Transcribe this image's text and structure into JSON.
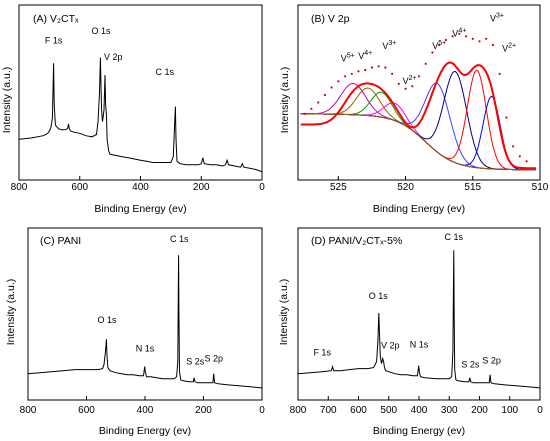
{
  "chart_data": [
    {
      "type": "line",
      "title": "(A) V₂CTₓ",
      "xlabel": "Binding Energy (ev)",
      "ylabel": "Intensity (a.u.)",
      "xlim": [
        800,
        0
      ],
      "x_reversed": true,
      "xticks": [
        "800",
        "600",
        "400",
        "200",
        "0"
      ],
      "y_ticks_shown": false,
      "series": [
        {
          "x": [
            800,
            760,
            720,
            705,
            700,
            695,
            690,
            686,
            684,
            680,
            670,
            660,
            650,
            640,
            637,
            634,
            630,
            620,
            600,
            580,
            560,
            545,
            540,
            535,
            532,
            530,
            528,
            525,
            520,
            517,
            515,
            512,
            510,
            505,
            500,
            480,
            460,
            440,
            420,
            400,
            380,
            360,
            340,
            320,
            300,
            292,
            288,
            285,
            283,
            280,
            270,
            250,
            230,
            210,
            200,
            195,
            190,
            170,
            150,
            130,
            120,
            115,
            110,
            90,
            70,
            65,
            60,
            40,
            20,
            0
          ],
          "y": [
            0.3,
            0.31,
            0.33,
            0.35,
            0.37,
            0.4,
            0.48,
            0.95,
            0.6,
            0.42,
            0.39,
            0.38,
            0.38,
            0.39,
            0.43,
            0.39,
            0.37,
            0.36,
            0.35,
            0.33,
            0.32,
            0.34,
            0.45,
            0.7,
            1.0,
            0.75,
            0.55,
            0.45,
            0.55,
            0.85,
            0.6,
            0.5,
            0.3,
            0.2,
            0.17,
            0.16,
            0.15,
            0.14,
            0.13,
            0.12,
            0.11,
            0.1,
            0.1,
            0.1,
            0.1,
            0.15,
            0.4,
            0.58,
            0.3,
            0.11,
            0.09,
            0.08,
            0.08,
            0.08,
            0.09,
            0.14,
            0.09,
            0.08,
            0.08,
            0.07,
            0.08,
            0.12,
            0.08,
            0.07,
            0.06,
            0.09,
            0.06,
            0.05,
            0.04,
            0.02
          ]
        }
      ],
      "annotations": [
        {
          "text": "F 1s",
          "x": 686,
          "y": 1.12
        },
        {
          "text": "O 1s",
          "x": 530,
          "y": 1.2
        },
        {
          "text": "V 2p",
          "x": 490,
          "y": 0.98
        },
        {
          "text": "C 1s",
          "x": 320,
          "y": 0.85
        }
      ]
    },
    {
      "type": "line",
      "title": "(B) V 2p",
      "xlabel": "Binding Energy (ev)",
      "ylabel": "Intensity (a.u.)",
      "xlim": [
        528,
        510
      ],
      "x_reversed": true,
      "xticks": [
        "525",
        "520",
        "515",
        "510"
      ],
      "y_ticks_shown": false,
      "series": [
        {
          "name": "measured",
          "x": [
            527.5,
            527,
            526.5,
            526,
            525.5,
            525,
            524.5,
            524,
            523.5,
            523,
            522.5,
            522,
            521.5,
            521,
            520.5,
            520,
            519.5,
            519,
            518.5,
            518,
            517.5,
            517,
            516.5,
            516,
            515.5,
            515,
            514.5,
            514,
            513.5,
            513,
            512.5,
            512,
            511.5,
            511
          ],
          "y": [
            0.48,
            0.52,
            0.57,
            0.63,
            0.69,
            0.74,
            0.78,
            0.8,
            0.82,
            0.83,
            0.85,
            0.86,
            0.85,
            0.8,
            0.72,
            0.68,
            0.7,
            0.78,
            0.88,
            0.97,
            1.03,
            1.07,
            1.1,
            1.12,
            1.1,
            1.08,
            1.06,
            1.08,
            1.03,
            0.8,
            0.45,
            0.22,
            0.14,
            0.1
          ]
        },
        {
          "name": "V⁵⁺ (2p1/2)",
          "center": 523.9,
          "height": 0.25,
          "width": 1.3,
          "color": "#c000c0"
        },
        {
          "name": "V⁴⁺ (2p1/2)",
          "center": 522.8,
          "height": 0.22,
          "width": 1.2,
          "color": "#a06000"
        },
        {
          "name": "V³⁺ (2p1/2)",
          "center": 521.8,
          "height": 0.2,
          "width": 1.1,
          "color": "#00a000"
        },
        {
          "name": "V²⁺ (2p1/2)",
          "center": 520.8,
          "height": 0.14,
          "width": 1.1,
          "color": "#ff00ff"
        },
        {
          "name": "V⁵⁺ (2p3/2)",
          "center": 517.6,
          "height": 0.55,
          "width": 1.3,
          "color": "#4040ff"
        },
        {
          "name": "V⁴⁺ (2p3/2)",
          "center": 516.3,
          "height": 0.73,
          "width": 1.2,
          "color": "#000080"
        },
        {
          "name": "V³⁺ (2p3/2)",
          "center": 514.7,
          "height": 0.78,
          "width": 1.0,
          "color": "#ff0000"
        },
        {
          "name": "V²⁺ (2p3/2)",
          "center": 513.6,
          "height": 0.58,
          "width": 0.9,
          "color": "#0000ff"
        },
        {
          "name": "background",
          "color": "#a06000"
        }
      ],
      "annotations": [
        {
          "text": "V",
          "sup": "5+",
          "x": 524.3,
          "y": 0.9
        },
        {
          "text": "V",
          "sup": "4+",
          "x": 523.0,
          "y": 0.92
        },
        {
          "text": "V",
          "sup": "3+",
          "x": 521.2,
          "y": 1.0
        },
        {
          "text": "V",
          "sup": "2+",
          "x": 519.7,
          "y": 0.72
        },
        {
          "text": "V",
          "sup": "5+",
          "x": 517.5,
          "y": 1.0
        },
        {
          "text": "V",
          "sup": "4+",
          "x": 516.0,
          "y": 1.1
        },
        {
          "text": "V",
          "sup": "3+",
          "x": 513.2,
          "y": 1.22
        },
        {
          "text": "V",
          "sup": "2+",
          "x": 512.3,
          "y": 0.98
        }
      ]
    },
    {
      "type": "line",
      "title": "(C) PANI",
      "xlabel": "Binding Energy (ev)",
      "ylabel": "Intensity (a.u.)",
      "xlim": [
        800,
        0
      ],
      "x_reversed": true,
      "xticks": [
        "800",
        "600",
        "400",
        "200",
        "0"
      ],
      "y_ticks_shown": false,
      "series": [
        {
          "x": [
            800,
            760,
            720,
            680,
            640,
            600,
            580,
            560,
            545,
            540,
            535,
            532,
            530,
            527,
            520,
            500,
            480,
            460,
            440,
            420,
            405,
            401,
            399,
            395,
            380,
            360,
            340,
            320,
            300,
            292,
            288,
            286,
            285,
            284,
            282,
            278,
            270,
            250,
            235,
            232,
            229,
            220,
            200,
            180,
            168,
            165,
            162,
            150,
            120,
            80,
            40,
            0
          ],
          "y": [
            0.18,
            0.19,
            0.2,
            0.21,
            0.22,
            0.22,
            0.22,
            0.22,
            0.23,
            0.27,
            0.4,
            0.52,
            0.36,
            0.24,
            0.21,
            0.19,
            0.18,
            0.17,
            0.17,
            0.16,
            0.16,
            0.25,
            0.2,
            0.15,
            0.15,
            0.14,
            0.13,
            0.13,
            0.13,
            0.15,
            0.3,
            1.0,
            1.35,
            0.8,
            0.2,
            0.12,
            0.11,
            0.1,
            0.1,
            0.14,
            0.1,
            0.09,
            0.09,
            0.09,
            0.09,
            0.18,
            0.09,
            0.08,
            0.07,
            0.06,
            0.05,
            0.04
          ]
        }
      ],
      "annotations": [
        {
          "text": "O 1s",
          "x": 530,
          "y": 0.68
        },
        {
          "text": "N 1s",
          "x": 400,
          "y": 0.4
        },
        {
          "text": "C 1s",
          "x": 283,
          "y": 1.48
        },
        {
          "text": "S 2s",
          "x": 228,
          "y": 0.27
        },
        {
          "text": "S 2p",
          "x": 165,
          "y": 0.3
        }
      ]
    },
    {
      "type": "line",
      "title": "(D) PANI/V₂CTₓ-5%",
      "xlabel": "Binding Energy (ev)",
      "ylabel": "Intensity (a.u.)",
      "xlim": [
        800,
        0
      ],
      "x_reversed": true,
      "xticks": [
        "800",
        "700",
        "600",
        "500",
        "400",
        "300",
        "200",
        "100",
        "0"
      ],
      "y_ticks_shown": false,
      "series": [
        {
          "x": [
            800,
            760,
            720,
            690,
            686,
            682,
            660,
            630,
            600,
            570,
            550,
            540,
            536,
            533,
            531,
            528,
            524,
            520,
            517,
            514,
            510,
            500,
            480,
            460,
            440,
            420,
            405,
            401,
            399,
            395,
            380,
            340,
            300,
            292,
            288,
            286,
            285,
            284,
            282,
            278,
            270,
            250,
            235,
            232,
            229,
            220,
            200,
            180,
            168,
            165,
            162,
            150,
            120,
            80,
            40,
            0
          ],
          "y": [
            0.18,
            0.19,
            0.2,
            0.21,
            0.25,
            0.21,
            0.21,
            0.22,
            0.23,
            0.23,
            0.24,
            0.3,
            0.5,
            0.78,
            0.6,
            0.35,
            0.28,
            0.33,
            0.3,
            0.24,
            0.21,
            0.2,
            0.18,
            0.17,
            0.17,
            0.16,
            0.16,
            0.26,
            0.2,
            0.15,
            0.14,
            0.13,
            0.13,
            0.15,
            0.4,
            1.1,
            1.4,
            0.85,
            0.22,
            0.12,
            0.11,
            0.1,
            0.1,
            0.14,
            0.1,
            0.09,
            0.09,
            0.09,
            0.09,
            0.17,
            0.09,
            0.08,
            0.07,
            0.06,
            0.05,
            0.04
          ]
        }
      ],
      "annotations": [
        {
          "text": "F 1s",
          "x": 720,
          "y": 0.36
        },
        {
          "text": "O 1s",
          "x": 535,
          "y": 0.92
        },
        {
          "text": "V 2p",
          "x": 495,
          "y": 0.43
        },
        {
          "text": "N 1s",
          "x": 400,
          "y": 0.44
        },
        {
          "text": "C 1s",
          "x": 285,
          "y": 1.5
        },
        {
          "text": "S 2s",
          "x": 230,
          "y": 0.24
        },
        {
          "text": "S 2p",
          "x": 160,
          "y": 0.28
        }
      ]
    }
  ]
}
